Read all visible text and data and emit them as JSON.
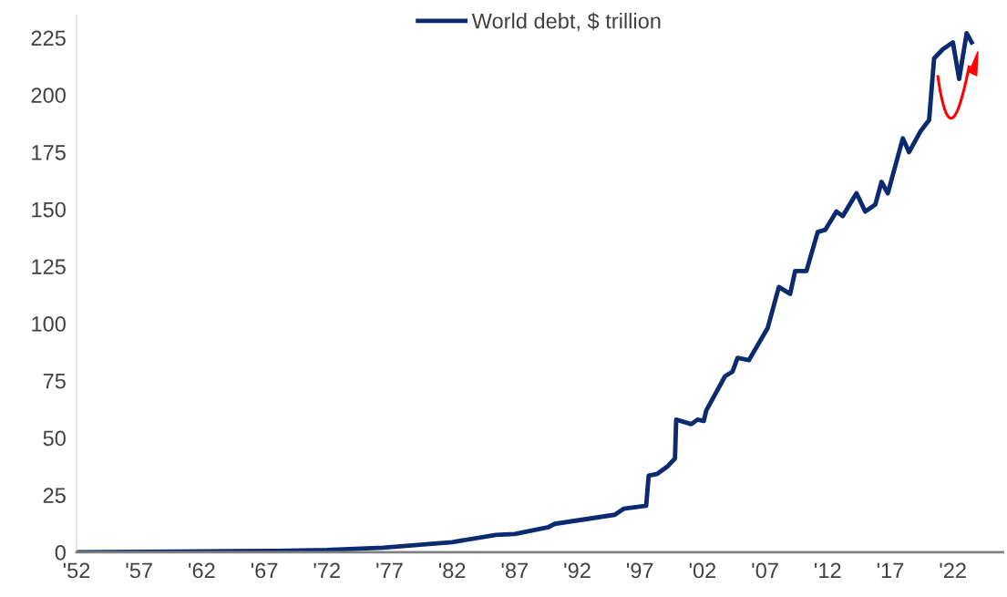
{
  "chart_data": {
    "type": "line",
    "x": [
      1952,
      1960,
      1968,
      1972,
      1976.5,
      1982,
      1985.5,
      1987,
      1989.7,
      1990.2,
      1995,
      1995.7,
      1997.5,
      1997.7,
      1998.4,
      1999.2,
      1999.8,
      1999.9,
      2001.1,
      2001.6,
      2002.1,
      2002.3,
      2003.8,
      2004.4,
      2004.8,
      2005.7,
      2007.2,
      2008.1,
      2009,
      2009.4,
      2010.3,
      2011.2,
      2011.8,
      2012.7,
      2013.2,
      2014.3,
      2015,
      2015.8,
      2016.3,
      2016.8,
      2018,
      2018.5,
      2019.4,
      2020.1,
      2020.5,
      2021.2,
      2022,
      2022.5,
      2023.1,
      2023.5
    ],
    "series": [
      {
        "name": "World debt, $ trillion",
        "color": "#0b2a6f",
        "values": [
          0,
          0.3,
          0.6,
          1,
          2,
          4.4,
          7.6,
          8,
          11,
          12.4,
          16.4,
          19,
          20.3,
          33.5,
          34.3,
          37.5,
          41,
          58,
          56,
          58,
          57.4,
          62,
          77,
          79,
          85,
          84,
          98,
          116,
          113,
          123,
          123,
          140,
          141,
          149,
          147,
          157,
          149,
          152,
          162,
          157,
          181,
          175,
          184,
          189,
          216,
          220,
          223,
          207,
          227,
          223
        ]
      }
    ],
    "xlim": [
      1952,
      2026
    ],
    "xticks": [
      {
        "value": 1952,
        "label": "'52"
      },
      {
        "value": 1957,
        "label": "'57"
      },
      {
        "value": 1962,
        "label": "'62"
      },
      {
        "value": 1967,
        "label": "'67"
      },
      {
        "value": 1972,
        "label": "'72"
      },
      {
        "value": 1977,
        "label": "'77"
      },
      {
        "value": 1982,
        "label": "'82"
      },
      {
        "value": 1987,
        "label": "'87"
      },
      {
        "value": 1992,
        "label": "'92"
      },
      {
        "value": 1997,
        "label": "'97"
      },
      {
        "value": 2002,
        "label": "'02"
      },
      {
        "value": 2007,
        "label": "'07"
      },
      {
        "value": 2012,
        "label": "'12"
      },
      {
        "value": 2017,
        "label": "'17"
      },
      {
        "value": 2022,
        "label": "'22"
      }
    ],
    "ylim": [
      0,
      235
    ],
    "yticks": [
      0,
      25,
      50,
      75,
      100,
      125,
      150,
      175,
      200,
      225
    ],
    "grid": false,
    "legend": "top",
    "marker": "none",
    "line_style": "solid"
  }
}
